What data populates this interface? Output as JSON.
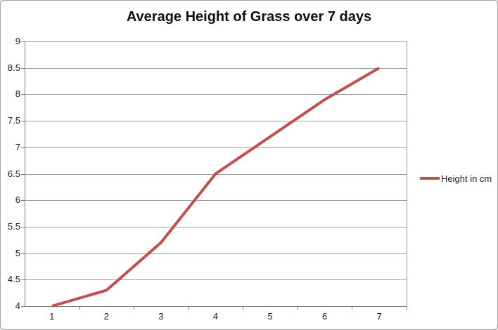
{
  "window": {
    "background": "#FFFFFF",
    "border_color": "#A3A3A3"
  },
  "chart_data": {
    "type": "line",
    "title": "Average Height of Grass over 7 days",
    "categories": [
      "1",
      "2",
      "3",
      "4",
      "5",
      "6",
      "7"
    ],
    "series": [
      {
        "name": "Height in cm",
        "color": "#C0504D",
        "values": [
          4.0,
          4.3,
          5.2,
          6.5,
          7.2,
          7.9,
          8.5
        ]
      }
    ],
    "xlabel": "",
    "ylabel": "",
    "ylim": [
      4,
      9
    ],
    "ytick_step": 0.5,
    "yticks": [
      "4",
      "4.5",
      "5",
      "5.5",
      "6",
      "6.5",
      "7",
      "7.5",
      "8",
      "8.5",
      "9"
    ],
    "grid": true,
    "gridline_color": "#9C9C9C",
    "axis_color": "#7F7F7F",
    "text_color": "#1A1A1A",
    "legend_position": "right-middle"
  },
  "legend": {
    "label": "Height in cm"
  }
}
